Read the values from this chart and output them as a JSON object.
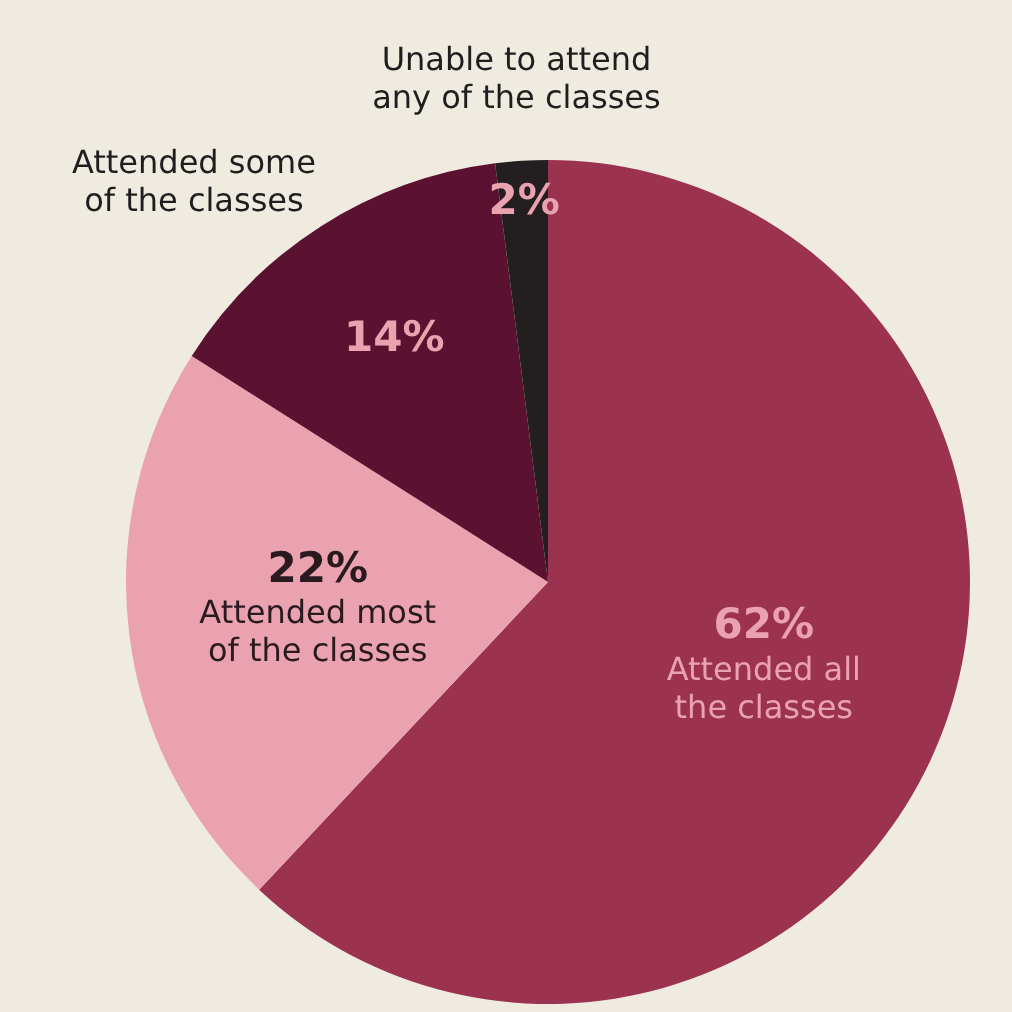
{
  "chart_data": {
    "type": "pie",
    "categories": [
      "Attended all the classes",
      "Attended most of the classes",
      "Attended some of the classes",
      "Unable to attend any of the classes"
    ],
    "values": [
      62,
      22,
      14,
      2
    ],
    "value_labels": [
      "62%",
      "22%",
      "14%",
      "2%"
    ],
    "colors": [
      "#9b3350",
      "#eba2b0",
      "#5a1230",
      "#231f20"
    ],
    "legend": false
  }
}
